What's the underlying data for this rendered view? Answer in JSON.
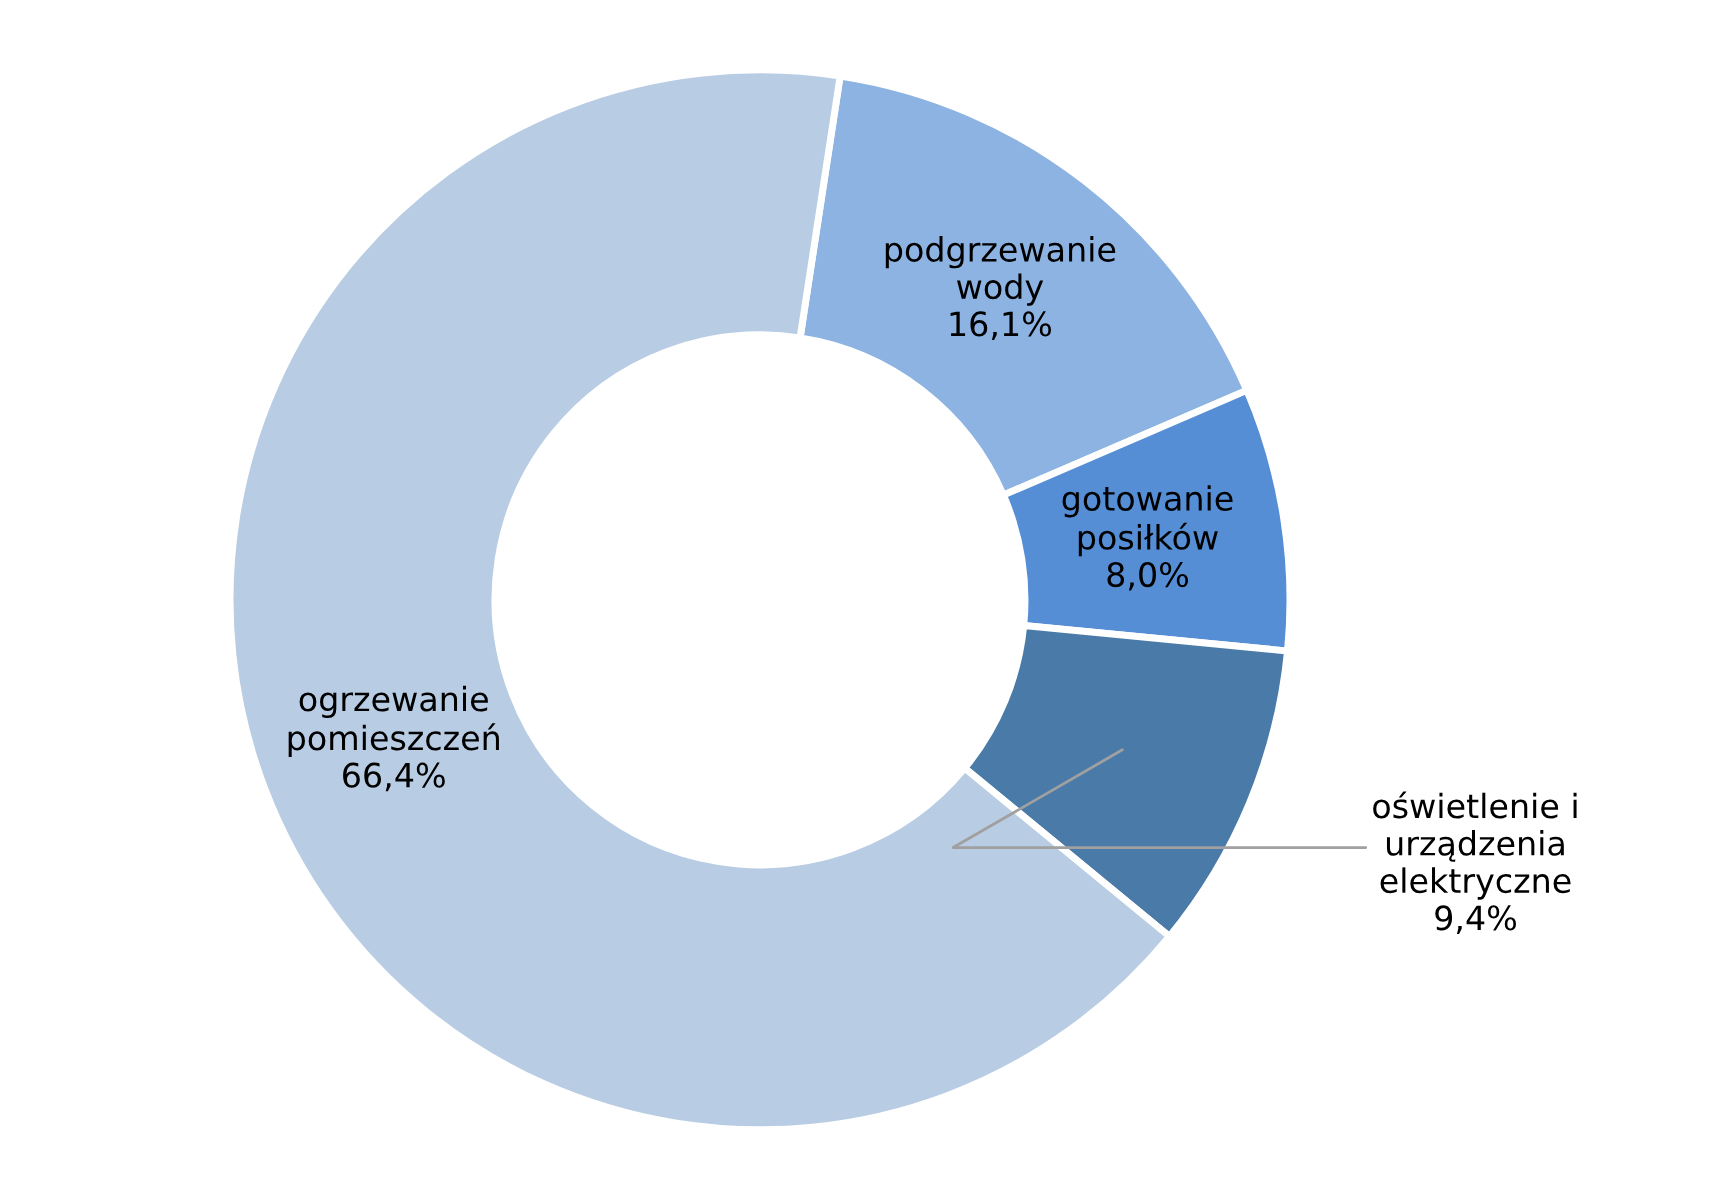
{
  "chart_data": {
    "type": "donut",
    "categories": [
      "podgrzewanie\nwody",
      "gotowanie\nposiłków",
      "oświetlenie i\nurządzenia\nelektryczne",
      "ogrzewanie\npomieszczeń"
    ],
    "values": [
      16.1,
      8.0,
      9.4,
      66.4
    ],
    "colors": [
      "#8db3e2",
      "#558ed5",
      "#4a7aa8",
      "#b8cce4"
    ],
    "value_labels": [
      "16,1%",
      "8,0%",
      "9,4%",
      "66,4%"
    ],
    "legend": false
  }
}
